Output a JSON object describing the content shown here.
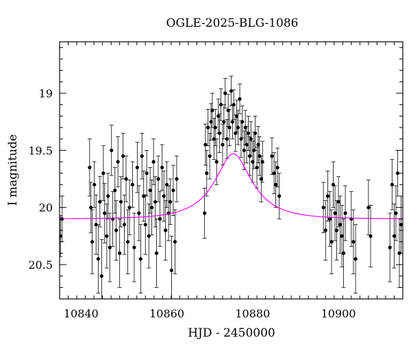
{
  "chart_data": {
    "type": "scatter",
    "title": "OGLE-2025-BLG-1086",
    "xlabel": "HJD - 2450000",
    "ylabel": "I magnitude",
    "xlim": [
      10835,
      10915
    ],
    "ylim": [
      20.8,
      18.55
    ],
    "y_inverted": true,
    "xticks": [
      10840,
      10860,
      10880,
      10900
    ],
    "yticks": [
      19,
      19.5,
      20,
      20.5
    ],
    "xtick_labels": [
      "10840",
      "10860",
      "10880",
      "10900"
    ],
    "ytick_labels": [
      "19",
      "19.5",
      "20",
      "20.5"
    ],
    "grid": false,
    "legend": "none",
    "point_color": "#000000",
    "model_color": "#ff00ff",
    "model": {
      "t0": 10875.5,
      "u0": 0.42,
      "tE": 9,
      "baseline_mag": 20.1
    },
    "series": [
      {
        "kind": "points_with_errorbars",
        "x": [
          10835.2,
          10835.6,
          10842.0,
          10842.3,
          10842.6,
          10843.1,
          10843.5,
          10844.0,
          10844.4,
          10844.8,
          10845.2,
          10845.5,
          10846.0,
          10846.3,
          10846.7,
          10847.1,
          10847.4,
          10847.9,
          10848.2,
          10848.6,
          10849.0,
          10849.3,
          10849.8,
          10850.1,
          10850.5,
          10850.9,
          10851.3,
          10852.0,
          10852.4,
          10853.1,
          10853.5,
          10853.9,
          10854.2,
          10854.6,
          10855.0,
          10855.3,
          10855.8,
          10856.1,
          10856.5,
          10856.9,
          10857.3,
          10857.6,
          10858.0,
          10858.4,
          10858.9,
          10859.3,
          10859.7,
          10860.0,
          10860.4,
          10860.8,
          10861.1,
          10861.5,
          10861.9,
          10862.3,
          10868.8,
          10869.0,
          10869.3,
          10869.6,
          10870.0,
          10870.3,
          10870.6,
          10871.0,
          10871.3,
          10871.6,
          10872.0,
          10872.3,
          10872.6,
          10873.0,
          10873.3,
          10873.6,
          10874.0,
          10874.3,
          10874.6,
          10875.0,
          10875.3,
          10875.6,
          10876.0,
          10876.3,
          10876.6,
          10877.0,
          10877.3,
          10877.6,
          10878.0,
          10878.3,
          10878.6,
          10879.0,
          10879.3,
          10879.6,
          10880.0,
          10880.3,
          10880.6,
          10881.0,
          10881.3,
          10881.6,
          10882.0,
          10882.3,
          10884.5,
          10885.0,
          10885.4,
          10885.8,
          10886.2,
          10896.5,
          10897.0,
          10897.5,
          10898.0,
          10898.4,
          10898.8,
          10899.2,
          10899.6,
          10900.0,
          10900.4,
          10900.8,
          10901.2,
          10901.6,
          10903.0,
          10903.5,
          10904.0,
          10907.0,
          10907.5,
          10912.0,
          10912.5,
          10913.0,
          10913.4,
          10913.8,
          10914.2,
          10914.6
        ],
        "y": [
          20.25,
          20.1,
          19.65,
          20.0,
          20.3,
          19.8,
          20.15,
          20.45,
          19.95,
          20.6,
          19.7,
          20.05,
          20.25,
          19.9,
          20.35,
          19.5,
          20.1,
          19.85,
          20.2,
          19.6,
          20.4,
          19.95,
          19.55,
          20.15,
          19.75,
          20.3,
          20.0,
          19.8,
          20.35,
          19.65,
          20.05,
          20.45,
          19.55,
          19.9,
          20.15,
          19.7,
          20.25,
          19.85,
          20.0,
          19.6,
          19.95,
          20.4,
          19.75,
          20.1,
          19.65,
          19.9,
          20.2,
          19.8,
          20.05,
          19.95,
          20.55,
          19.85,
          20.3,
          19.75,
          20.05,
          19.45,
          19.7,
          19.3,
          19.55,
          19.25,
          19.15,
          19.4,
          19.3,
          19.6,
          19.2,
          19.35,
          19.1,
          19.45,
          19.25,
          19.0,
          19.4,
          19.15,
          19.3,
          18.98,
          19.25,
          19.1,
          19.35,
          19.2,
          19.3,
          19.05,
          19.4,
          19.25,
          19.5,
          19.3,
          19.45,
          19.35,
          19.55,
          19.4,
          19.6,
          19.5,
          19.35,
          19.65,
          19.45,
          19.55,
          19.75,
          19.6,
          19.55,
          19.7,
          19.8,
          19.65,
          19.9,
          20.0,
          20.2,
          19.9,
          20.1,
          20.3,
          19.8,
          20.05,
          20.2,
          19.95,
          20.15,
          20.25,
          20.4,
          20.05,
          20.1,
          20.3,
          20.45,
          20.0,
          20.25,
          20.35,
          19.8,
          20.25,
          20.05,
          19.7,
          20.4,
          20.15
        ],
        "err": [
          0.18,
          0.2,
          0.25,
          0.22,
          0.28,
          0.2,
          0.26,
          0.3,
          0.22,
          0.32,
          0.24,
          0.26,
          0.28,
          0.2,
          0.3,
          0.22,
          0.24,
          0.2,
          0.26,
          0.22,
          0.3,
          0.22,
          0.2,
          0.26,
          0.2,
          0.28,
          0.24,
          0.2,
          0.3,
          0.22,
          0.24,
          0.3,
          0.2,
          0.22,
          0.26,
          0.2,
          0.28,
          0.2,
          0.24,
          0.2,
          0.22,
          0.3,
          0.2,
          0.24,
          0.2,
          0.22,
          0.26,
          0.2,
          0.24,
          0.2,
          0.3,
          0.22,
          0.28,
          0.2,
          0.22,
          0.18,
          0.2,
          0.16,
          0.2,
          0.16,
          0.15,
          0.18,
          0.16,
          0.2,
          0.15,
          0.17,
          0.14,
          0.18,
          0.15,
          0.13,
          0.17,
          0.14,
          0.16,
          0.13,
          0.15,
          0.13,
          0.16,
          0.14,
          0.15,
          0.13,
          0.16,
          0.14,
          0.17,
          0.15,
          0.16,
          0.15,
          0.17,
          0.15,
          0.18,
          0.16,
          0.15,
          0.18,
          0.16,
          0.17,
          0.2,
          0.18,
          0.16,
          0.18,
          0.2,
          0.17,
          0.2,
          0.22,
          0.26,
          0.22,
          0.24,
          0.28,
          0.2,
          0.24,
          0.26,
          0.22,
          0.25,
          0.27,
          0.3,
          0.24,
          0.24,
          0.28,
          0.3,
          0.24,
          0.27,
          0.3,
          0.22,
          0.28,
          0.24,
          0.2,
          0.3,
          0.25
        ]
      }
    ]
  }
}
